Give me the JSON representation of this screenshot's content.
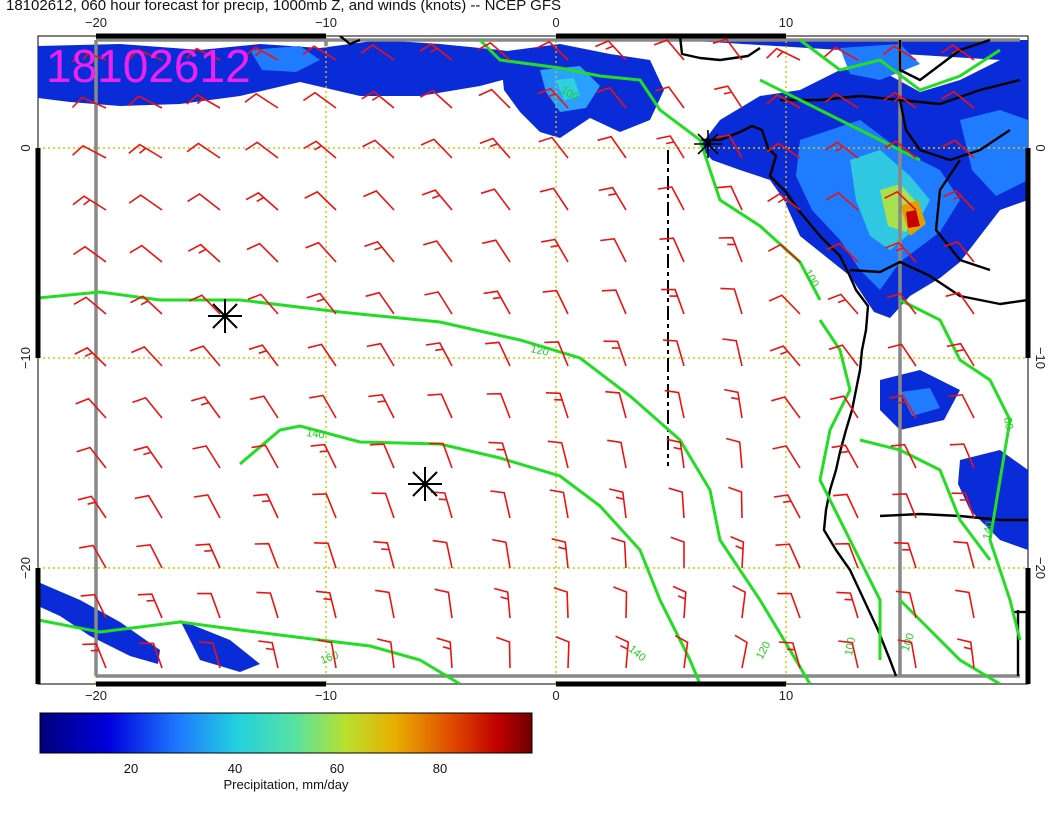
{
  "title": "18102612, 060 hour forecast for precip, 1000mb Z, and winds (knots) -- NCEP GFS",
  "stamp": "18102612",
  "axes": {
    "x_ticks": [
      "−20",
      "−10",
      "0",
      "10"
    ],
    "y_ticks": [
      "0",
      "−10",
      "−20"
    ]
  },
  "contour_labels": [
    "100",
    "120",
    "140",
    "160",
    "120",
    "140",
    "100",
    "100",
    "80",
    "100",
    "140"
  ],
  "colorbar": {
    "ticks": [
      "20",
      "40",
      "60",
      "80"
    ],
    "label": "Precipitation, mm/day"
  },
  "colors": {
    "wind_barb": "#ee1111",
    "height_contour": "#22dd22",
    "gridline": "#d8c200",
    "coastline": "#000000"
  },
  "icons": [
    "low-pressure-center-icon",
    "high-pressure-center-icon"
  ]
}
